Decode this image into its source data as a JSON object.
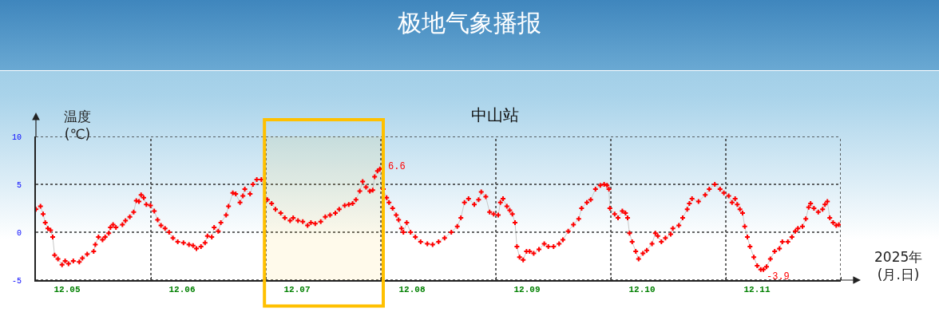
{
  "chart_data": {
    "type": "line",
    "title": "极地气象播报",
    "subtitle": "中山站",
    "ylabel": "温度\n(℃)",
    "xlabel": "2025年\n(月.日)",
    "x": [
      "2025-12-05T00:00",
      "2025-12-05T00:57",
      "2025-12-05T01:30",
      "2025-12-05T01:57",
      "2025-12-05T02:30",
      "2025-12-05T03:03",
      "2025-12-05T03:30",
      "2025-12-05T03:54",
      "2025-12-05T04:36",
      "2025-12-05T05:27",
      "2025-12-05T06:06",
      "2025-12-05T06:48",
      "2025-12-05T07:48",
      "2025-12-05T09:03",
      "2025-12-05T09:42",
      "2025-12-05T10:42",
      "2025-12-05T12:03",
      "2025-12-05T12:24",
      "2025-12-05T13:03",
      "2025-12-05T13:54",
      "2025-12-05T14:27",
      "2025-12-05T15:12",
      "2025-12-05T15:33",
      "2025-12-05T16:06",
      "2025-12-05T16:42",
      "2025-12-05T18:03",
      "2025-12-05T18:42",
      "2025-12-05T19:36",
      "2025-12-05T20:24",
      "2025-12-05T20:57",
      "2025-12-05T21:30",
      "2025-12-05T21:57",
      "2025-12-05T22:30",
      "2025-12-05T23:03",
      "2025-12-05T23:54",
      "2025-12-06T00:42",
      "2025-12-06T01:24",
      "2025-12-06T02:06",
      "2025-12-06T02:57",
      "2025-12-06T03:48",
      "2025-12-06T04:36",
      "2025-12-06T05:36",
      "2025-12-06T06:48",
      "2025-12-06T07:57",
      "2025-12-06T08:48",
      "2025-12-06T09:30",
      "2025-12-06T10:27",
      "2025-12-06T11:18",
      "2025-12-06T11:48",
      "2025-12-06T12:42",
      "2025-12-06T13:12",
      "2025-12-06T14:03",
      "2025-12-06T14:36",
      "2025-12-06T15:42",
      "2025-12-06T16:12",
      "2025-12-06T17:06",
      "2025-12-06T17:42",
      "2025-12-06T18:36",
      "2025-12-06T19:12",
      "2025-12-06T19:36",
      "2025-12-06T20:42",
      "2025-12-06T21:18",
      "2025-12-06T22:06",
      "2025-12-06T23:03",
      "2025-12-07T00:18",
      "2025-12-07T01:12",
      "2025-12-07T02:00",
      "2025-12-07T03:06",
      "2025-12-07T03:57",
      "2025-12-07T05:03",
      "2025-12-07T05:42",
      "2025-12-07T06:42",
      "2025-12-07T07:42",
      "2025-12-07T08:42",
      "2025-12-07T09:24",
      "2025-12-07T10:18",
      "2025-12-07T11:27",
      "2025-12-07T12:24",
      "2025-12-07T13:24",
      "2025-12-07T14:30",
      "2025-12-07T15:18",
      "2025-12-07T16:27",
      "2025-12-07T17:18",
      "2025-12-07T18:06",
      "2025-12-07T18:48",
      "2025-12-07T19:36",
      "2025-12-07T20:12",
      "2025-12-07T20:54",
      "2025-12-07T21:42",
      "2025-12-07T22:18",
      "2025-12-07T22:42",
      "2025-12-07T23:18",
      "2025-12-07T23:48",
      "2025-12-08T00:30",
      "2025-12-08T01:12",
      "2025-12-08T01:42",
      "2025-12-08T02:27",
      "2025-12-08T03:12",
      "2025-12-08T03:42",
      "2025-12-08T04:18",
      "2025-12-08T04:42",
      "2025-12-08T05:24",
      "2025-12-08T06:12",
      "2025-12-08T07:12",
      "2025-12-08T08:18",
      "2025-12-08T09:42",
      "2025-12-08T10:48",
      "2025-12-08T12:03",
      "2025-12-08T13:18",
      "2025-12-08T14:42",
      "2025-12-08T15:57",
      "2025-12-08T16:42",
      "2025-12-08T17:27",
      "2025-12-08T18:18",
      "2025-12-08T19:30",
      "2025-12-08T20:24",
      "2025-12-08T20:57",
      "2025-12-08T21:54",
      "2025-12-08T22:42",
      "2025-12-08T23:33",
      "2025-12-09T00:30",
      "2025-12-09T00:57",
      "2025-12-09T01:30",
      "2025-12-09T02:18",
      "2025-12-09T02:54",
      "2025-12-09T03:27",
      "2025-12-09T04:00",
      "2025-12-09T04:24",
      "2025-12-09T04:57",
      "2025-12-09T05:42",
      "2025-12-09T06:24",
      "2025-12-09T07:03",
      "2025-12-09T07:54",
      "2025-12-09T09:00",
      "2025-12-09T10:06",
      "2025-12-09T10:57",
      "2025-12-09T12:03",
      "2025-12-09T13:12",
      "2025-12-09T14:00",
      "2025-12-09T15:06",
      "2025-12-09T16:12",
      "2025-12-09T17:18",
      "2025-12-09T17:54",
      "2025-12-09T19:00",
      "2025-12-09T19:48",
      "2025-12-09T20:48",
      "2025-12-09T21:48",
      "2025-12-09T22:36",
      "2025-12-09T23:12",
      "2025-12-09T23:36",
      "2025-12-09T23:48",
      "2025-12-10T00:48",
      "2025-12-10T01:30",
      "2025-12-10T02:24",
      "2025-12-10T03:03",
      "2025-12-10T03:30",
      "2025-12-10T03:54",
      "2025-12-10T04:27",
      "2025-12-10T05:12",
      "2025-12-10T05:48",
      "2025-12-10T06:42",
      "2025-12-10T07:30",
      "2025-12-10T08:36",
      "2025-12-10T09:18",
      "2025-12-10T09:48",
      "2025-12-10T10:33",
      "2025-12-10T11:24",
      "2025-12-10T12:30",
      "2025-12-10T12:57",
      "2025-12-10T14:12",
      "2025-12-10T15:00",
      "2025-12-10T15:57",
      "2025-12-10T16:24",
      "2025-12-10T16:57",
      "2025-12-10T18:18",
      "2025-12-10T19:42",
      "2025-12-10T20:33",
      "2025-12-10T21:42",
      "2025-12-10T22:48",
      "2025-12-10T23:36",
      "2025-12-11T00:36",
      "2025-12-11T01:18",
      "2025-12-11T01:57",
      "2025-12-11T02:24",
      "2025-12-11T02:57",
      "2025-12-11T03:30",
      "2025-12-11T03:57",
      "2025-12-11T04:30",
      "2025-12-11T05:03",
      "2025-12-11T05:51",
      "2025-12-11T06:33",
      "2025-12-11T07:18",
      "2025-12-11T07:51",
      "2025-12-11T08:30",
      "2025-12-11T09:18",
      "2025-12-11T10:12",
      "2025-12-11T11:12",
      "2025-12-11T11:48",
      "2025-12-11T12:57",
      "2025-12-11T13:48",
      "2025-12-11T14:30",
      "2025-12-11T15:03",
      "2025-12-11T16:00",
      "2025-12-11T16:42",
      "2025-12-11T17:18",
      "2025-12-11T17:42",
      "2025-12-11T18:24",
      "2025-12-11T19:18",
      "2025-12-11T20:12",
      "2025-12-11T20:42",
      "2025-12-11T21:12",
      "2025-12-11T21:42",
      "2025-12-11T22:24",
      "2025-12-11T23:03",
      "2025-12-11T23:36"
    ],
    "series": [
      {
        "color": "#ff0000",
        "values": [
          2.4,
          2.7,
          1.9,
          1.0,
          0.4,
          0.2,
          -0.5,
          -2.4,
          -2.8,
          -3.4,
          -3.0,
          -3.3,
          -3.0,
          -3.1,
          -2.7,
          -2.3,
          -2.0,
          -1.3,
          -0.5,
          -0.8,
          -0.5,
          -0.1,
          0.5,
          0.8,
          0.5,
          0.8,
          1.2,
          1.6,
          2.1,
          3.3,
          3.2,
          3.9,
          3.6,
          2.9,
          2.8,
          2.2,
          1.3,
          0.7,
          0.4,
          0.0,
          -0.6,
          -1.0,
          -1.1,
          -1.3,
          -1.4,
          -1.7,
          -1.5,
          -1.1,
          -0.4,
          -0.5,
          0.5,
          0.1,
          1.0,
          1.8,
          2.7,
          4.1,
          4.0,
          3.1,
          3.8,
          4.5,
          4.0,
          5.0,
          5.5,
          5.5,
          3.4,
          3.0,
          2.4,
          2.0,
          1.5,
          1.2,
          1.5,
          1.2,
          1.1,
          0.7,
          1.0,
          0.9,
          1.1,
          1.6,
          1.8,
          2.0,
          2.4,
          2.8,
          2.9,
          3.0,
          3.4,
          4.3,
          5.3,
          4.7,
          4.3,
          4.4,
          5.8,
          6.4,
          6.6,
          4.5,
          3.6,
          3.1,
          2.5,
          1.8,
          1.3,
          0.4,
          0.0,
          1.0,
          0.0,
          -0.5,
          -1.0,
          -1.2,
          -1.3,
          -1.0,
          -0.6,
          0.0,
          0.6,
          1.5,
          3.1,
          3.5,
          2.9,
          3.4,
          4.2,
          3.7,
          2.1,
          1.9,
          1.8,
          3.1,
          3.5,
          2.7,
          2.3,
          1.9,
          1.0,
          -1.5,
          -2.6,
          -2.9,
          -2.0,
          -2.0,
          -2.2,
          -1.8,
          -1.2,
          -1.5,
          -1.5,
          -1.2,
          -0.8,
          0.1,
          0.8,
          1.4,
          2.5,
          3.1,
          3.4,
          4.5,
          4.9,
          5.0,
          4.9,
          4.5,
          2.5,
          1.9,
          1.5,
          2.2,
          2.0,
          1.5,
          -0.1,
          -1.0,
          -2.0,
          -2.8,
          -2.2,
          -1.9,
          -1.2,
          -0.1,
          -0.4,
          -1.0,
          -0.6,
          -0.2,
          0.4,
          0.7,
          1.5,
          2.4,
          3.0,
          3.5,
          3.2,
          3.9,
          4.5,
          5.0,
          4.5,
          4.1,
          3.8,
          3.1,
          3.5,
          2.9,
          2.4,
          2.0,
          0.6,
          -0.5,
          -1.5,
          -2.6,
          -3.5,
          -3.9,
          -3.9,
          -3.6,
          -2.8,
          -2.0,
          -1.7,
          -1.0,
          -1.0,
          -0.5,
          0.1,
          0.4,
          0.6,
          1.4,
          2.6,
          3.0,
          2.5,
          2.1,
          2.4,
          2.9,
          3.2,
          1.5,
          1.0,
          0.7,
          0.8
        ]
      }
    ],
    "xlim": [
      "2025-12-05T00:00",
      "2025-12-12T00:00"
    ],
    "xticks": [
      {
        "value": "2025-12-05T06:30",
        "label": "12.05"
      },
      {
        "value": "2025-12-06T00:00",
        "label": null
      },
      {
        "value": "2025-12-06T06:30",
        "label": "12.06"
      },
      {
        "value": "2025-12-07T00:00",
        "label": null
      },
      {
        "value": "2025-12-07T06:30",
        "label": "12.07"
      },
      {
        "value": "2025-12-08T00:00",
        "label": null
      },
      {
        "value": "2025-12-08T06:30",
        "label": "12.08"
      },
      {
        "value": "2025-12-09T00:00",
        "label": null
      },
      {
        "value": "2025-12-09T06:30",
        "label": "12.09"
      },
      {
        "value": "2025-12-10T00:00",
        "label": null
      },
      {
        "value": "2025-12-10T06:30",
        "label": "12.10"
      },
      {
        "value": "2025-12-11T00:00",
        "label": null
      },
      {
        "value": "2025-12-11T06:30",
        "label": "12.11"
      },
      {
        "value": "2025-12-12T00:00",
        "label": null
      }
    ],
    "ylim": [
      -5,
      10
    ],
    "yticks": [
      -5,
      0,
      5,
      10
    ],
    "grid": true,
    "marker": "cross",
    "annotations": [
      {
        "text": "6.6",
        "x": "2025-12-07T23:48",
        "y": 6.6
      },
      {
        "text": "-3.9",
        "x": "2025-12-11T07:51",
        "y": -3.9
      }
    ],
    "bands": [
      {
        "axis": "x",
        "from": "2025-12-06T23:42",
        "to": "2025-12-08T00:30",
        "color": "#ffc000"
      }
    ]
  }
}
